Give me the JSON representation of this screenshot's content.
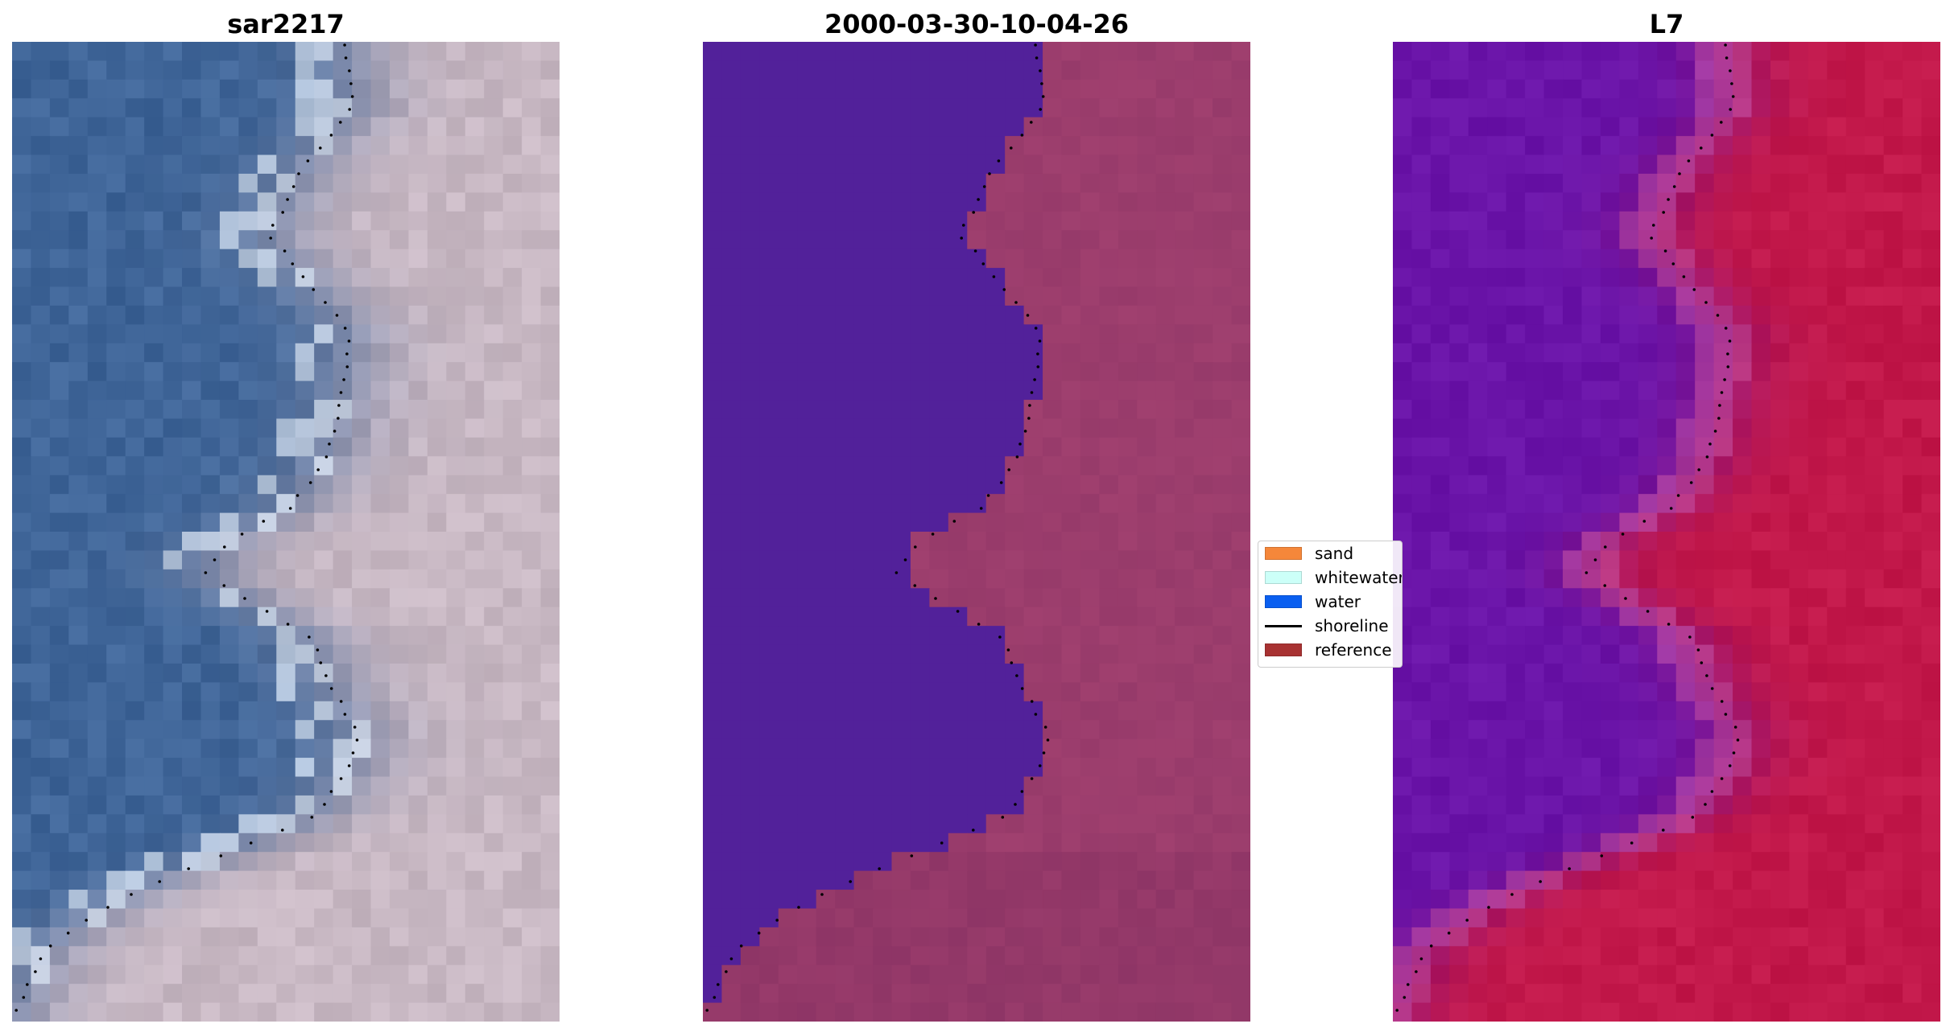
{
  "panels": [
    {
      "title": "sar2217",
      "image": "rgb-satellite-composite"
    },
    {
      "title": "2000-03-30-10-04-26",
      "image": "classified-ndwi-overlay"
    },
    {
      "title": "L7",
      "image": "water-index-colormap"
    }
  ],
  "legend": {
    "items": [
      {
        "label": "sand",
        "color": "#f5873a",
        "kind": "patch"
      },
      {
        "label": "whitewater",
        "color": "#ccfff8",
        "kind": "patch"
      },
      {
        "label": "water",
        "color": "#0a5ff0",
        "kind": "patch"
      },
      {
        "label": "shoreline",
        "color": "#000000",
        "kind": "line"
      },
      {
        "label": "reference",
        "color": "#a83232",
        "kind": "patch"
      }
    ]
  },
  "colors": {
    "sar_water": "#3f6598",
    "sar_land": "#c8b8c3",
    "class_water": "#52219a",
    "class_land": "#a0406f",
    "l7_water": "#6a14a8",
    "l7_land": "#c2184a",
    "shoreline": "#000000"
  }
}
